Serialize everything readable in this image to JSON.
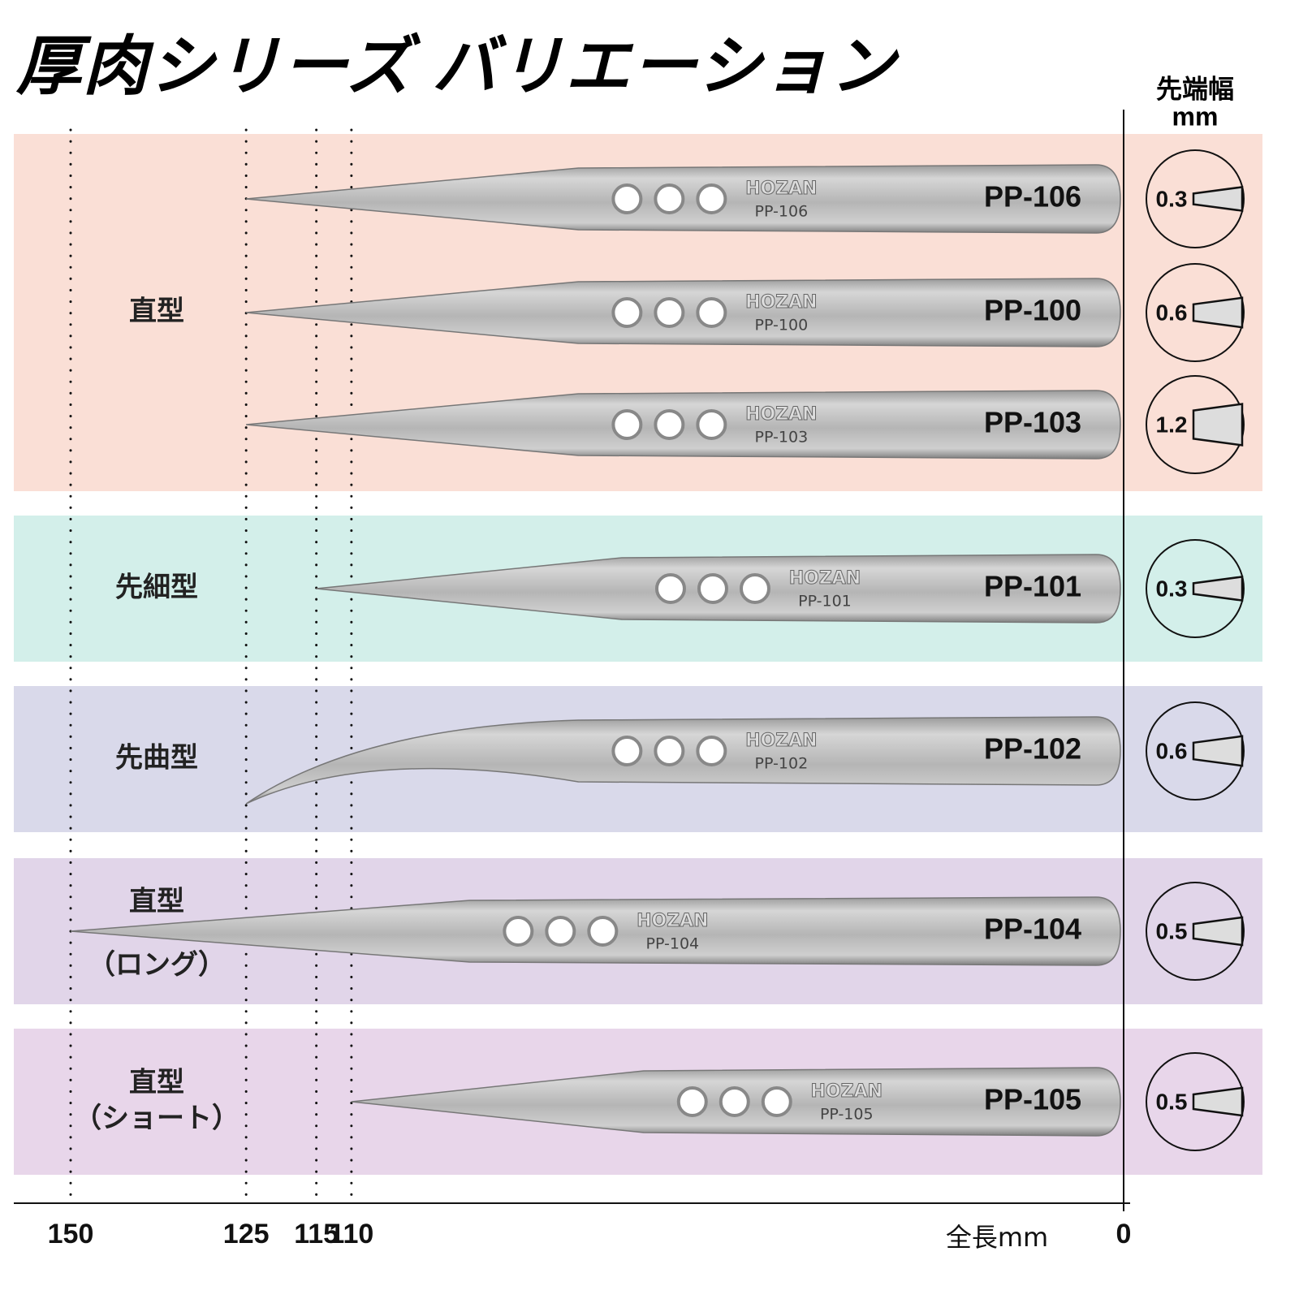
{
  "title": "厚肉シリーズ バリエーション",
  "tip_header": [
    "先端幅",
    "mm"
  ],
  "brand": "HOZAN",
  "axis": {
    "label": "全長mm",
    "ticks": [
      150,
      125,
      115,
      110,
      0
    ]
  },
  "groups": [
    {
      "label": [
        "直型"
      ],
      "color": "#fadfd6",
      "items": [
        {
          "model": "PP-106",
          "length": 125,
          "tip_width": 0.3
        },
        {
          "model": "PP-100",
          "length": 125,
          "tip_width": 0.6
        },
        {
          "model": "PP-103",
          "length": 125,
          "tip_width": 1.2
        }
      ]
    },
    {
      "label": [
        "先細型"
      ],
      "color": "#d3efea",
      "items": [
        {
          "model": "PP-101",
          "length": 115,
          "tip_width": 0.3
        }
      ]
    },
    {
      "label": [
        "先曲型"
      ],
      "color": "#d9d9ea",
      "items": [
        {
          "model": "PP-102",
          "length": 125,
          "tip_width": 0.6,
          "tip": "curved"
        }
      ]
    },
    {
      "label": [
        "直型",
        "（ロング）"
      ],
      "color": "#e1d5e9",
      "items": [
        {
          "model": "PP-104",
          "length": 150,
          "tip_width": 0.5
        }
      ]
    },
    {
      "label": [
        "直型",
        "（ショート）"
      ],
      "color": "#e8d6ea",
      "items": [
        {
          "model": "PP-105",
          "length": 110,
          "tip_width": 0.5
        }
      ]
    }
  ]
}
